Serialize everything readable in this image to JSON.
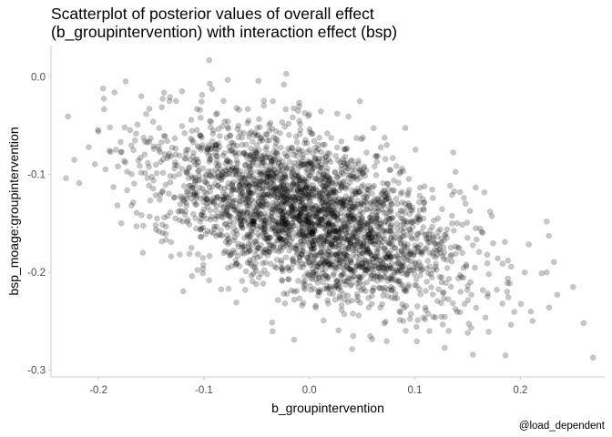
{
  "chart_data": {
    "type": "scatter",
    "title_line1": "Scatterplot of posterior values of overall effect",
    "title_line2": "(b_groupintervention) with interaction effect (bsp)",
    "xlabel": "b_groupintervention",
    "ylabel": "bsp_moage:groupintervention",
    "caption": "@load_dependent",
    "xlim": [
      -0.245,
      0.28
    ],
    "ylim": [
      -0.307,
      0.032
    ],
    "x_ticks": [
      -0.2,
      -0.1,
      0.0,
      0.1,
      0.2
    ],
    "x_tick_labels": [
      "-0.2",
      "-0.1",
      "0.0",
      "0.1",
      "0.2"
    ],
    "y_ticks": [
      0.0,
      -0.1,
      -0.2,
      -0.3
    ],
    "y_tick_labels": [
      "0.0",
      "-0.1",
      "-0.2",
      "-0.3"
    ],
    "grid": false,
    "point_color": "#000000",
    "point_opacity": 0.22,
    "distribution": {
      "n": 3000,
      "x_mean": 0.0,
      "x_sd": 0.072,
      "y_mean": -0.142,
      "y_sd": 0.047,
      "correlation": -0.52
    },
    "notable_points": [
      {
        "x": -0.223,
        "y": -0.085
      },
      {
        "x": -0.2,
        "y": -0.056
      },
      {
        "x": -0.095,
        "y": 0.017
      },
      {
        "x": -0.022,
        "y": 0.003
      },
      {
        "x": 0.26,
        "y": -0.252
      },
      {
        "x": 0.25,
        "y": -0.215
      },
      {
        "x": 0.235,
        "y": -0.223
      },
      {
        "x": 0.186,
        "y": -0.285
      },
      {
        "x": 0.225,
        "y": -0.148
      },
      {
        "x": 0.225,
        "y": -0.2
      }
    ]
  }
}
